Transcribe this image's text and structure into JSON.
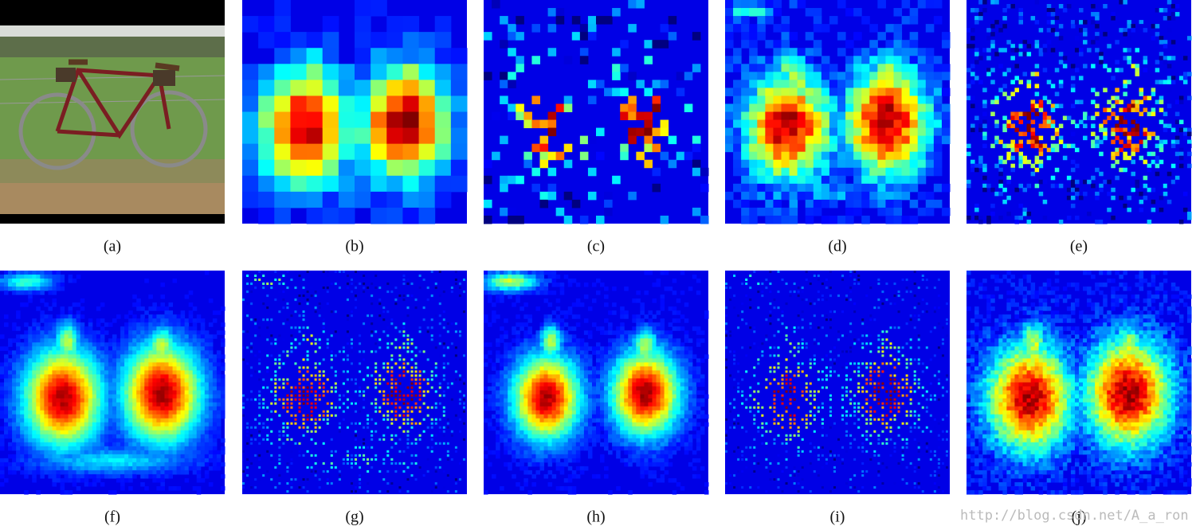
{
  "labels": [
    "(a)",
    "(b)",
    "(c)",
    "(d)",
    "(e)",
    "(f)",
    "(g)",
    "(h)",
    "(i)",
    "(j)"
  ],
  "watermark": "http://blog.csdn.net/A_a_ron"
}
